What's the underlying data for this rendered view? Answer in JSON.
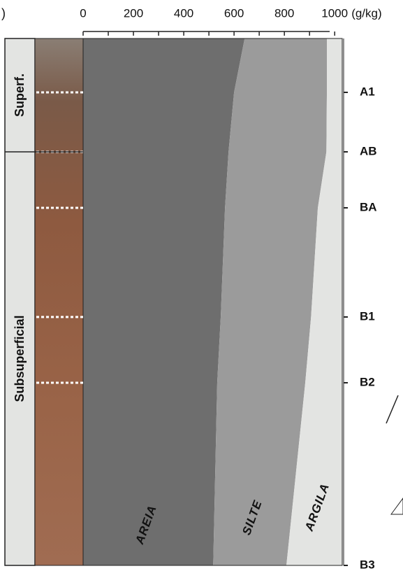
{
  "chart_data": {
    "type": "area",
    "stacked": true,
    "orientation": "horizontal",
    "x_label": "(g/kg)",
    "xlim": [
      0,
      1030
    ],
    "xticks": [
      0,
      200,
      400,
      600,
      800,
      1000
    ],
    "xminorticks": [
      100,
      300,
      500,
      700,
      900
    ],
    "categories": [
      null,
      "A1",
      "AB",
      "BA",
      "B1",
      "B2",
      "B3"
    ],
    "layers": [
      {
        "name": "Superf.",
        "from": 0,
        "to": 2
      },
      {
        "name": "Subsuperficial",
        "from": 2,
        "to": 6
      }
    ],
    "series": [
      {
        "name": "AREIA",
        "color": "#6e6e6e",
        "values": [
          642,
          600,
          578,
          564,
          547,
          533,
          517
        ]
      },
      {
        "name": "SILTE",
        "color": "#9b9b9b",
        "values": [
          327,
          369,
          389,
          369,
          359,
          350,
          291
        ]
      },
      {
        "name": "ARGILA",
        "color": "#e3e4e2",
        "values": [
          31,
          31,
          33,
          67,
          94,
          117,
          192
        ]
      }
    ]
  }
}
